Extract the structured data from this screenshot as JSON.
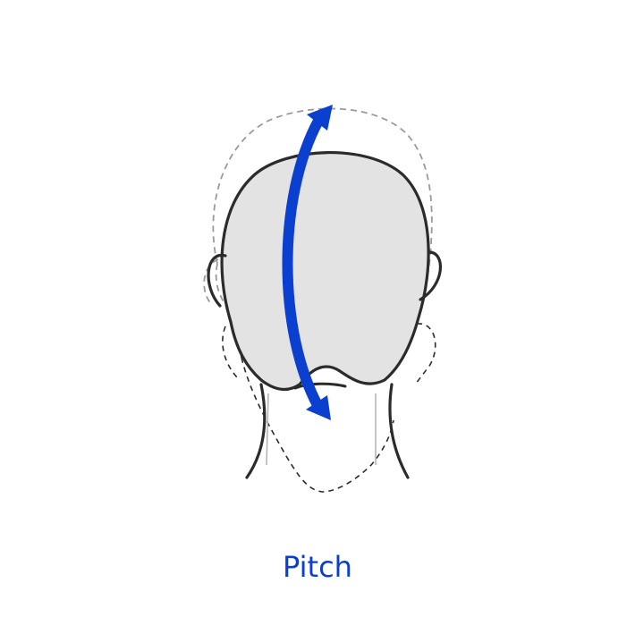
{
  "caption": "Pitch",
  "colors": {
    "accent": "#0a3fcf",
    "outline": "#2b2b2b",
    "head_fill": "#e3e3e3",
    "ghost_outline": "#9a9a9a"
  },
  "icons": [
    "head-back-view",
    "curved-double-arrow"
  ]
}
